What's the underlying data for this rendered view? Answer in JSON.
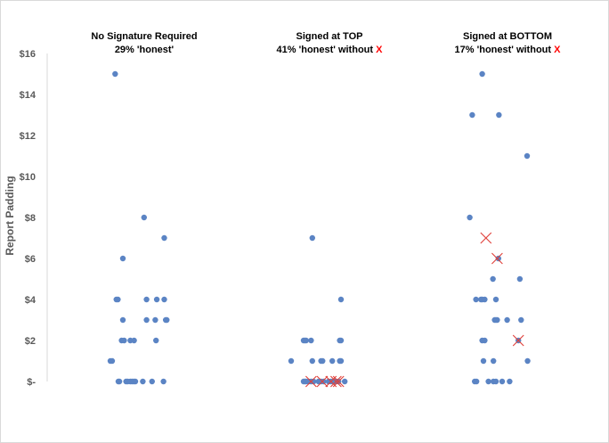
{
  "chart_data": {
    "type": "scatter",
    "ylabel": "Report Padding",
    "yticks": [
      "$16",
      "$14",
      "$12",
      "$10",
      "$8",
      "$6",
      "$4",
      "$2",
      "$-"
    ],
    "ylim": [
      0,
      16
    ],
    "grid": false,
    "point_color": "#5b84c4",
    "cross_color": "#e0403a",
    "panels": [
      {
        "title": "No Signature Required",
        "subtitle": "29% 'honest'",
        "subtitle_mark": "",
        "points": [
          {
            "x": 0.69,
            "y": 15
          },
          {
            "x": 1.85,
            "y": 8
          },
          {
            "x": 2.66,
            "y": 7
          },
          {
            "x": 1.0,
            "y": 6
          },
          {
            "x": 0.74,
            "y": 4
          },
          {
            "x": 0.8,
            "y": 4
          },
          {
            "x": 1.95,
            "y": 4
          },
          {
            "x": 2.36,
            "y": 4
          },
          {
            "x": 2.66,
            "y": 4
          },
          {
            "x": 1.0,
            "y": 3
          },
          {
            "x": 1.95,
            "y": 3
          },
          {
            "x": 2.3,
            "y": 3
          },
          {
            "x": 2.72,
            "y": 3
          },
          {
            "x": 2.76,
            "y": 3
          },
          {
            "x": 0.95,
            "y": 2
          },
          {
            "x": 1.05,
            "y": 2
          },
          {
            "x": 1.3,
            "y": 2
          },
          {
            "x": 1.45,
            "y": 2
          },
          {
            "x": 2.33,
            "y": 2
          },
          {
            "x": 0.5,
            "y": 1
          },
          {
            "x": 0.57,
            "y": 1
          },
          {
            "x": 0.82,
            "y": 0
          },
          {
            "x": 0.86,
            "y": 0
          },
          {
            "x": 1.13,
            "y": 0
          },
          {
            "x": 1.19,
            "y": 0
          },
          {
            "x": 1.3,
            "y": 0
          },
          {
            "x": 1.37,
            "y": 0
          },
          {
            "x": 1.44,
            "y": 0
          },
          {
            "x": 1.5,
            "y": 0
          },
          {
            "x": 1.8,
            "y": 0
          },
          {
            "x": 2.17,
            "y": 0
          },
          {
            "x": 2.63,
            "y": 0
          }
        ],
        "crosses": []
      },
      {
        "title": "Signed at TOP",
        "subtitle": "41% 'honest' without",
        "subtitle_mark": "X",
        "points": [
          {
            "x": 1.35,
            "y": 7
          },
          {
            "x": 2.5,
            "y": 4
          },
          {
            "x": 1.0,
            "y": 2
          },
          {
            "x": 1.05,
            "y": 2
          },
          {
            "x": 1.1,
            "y": 2
          },
          {
            "x": 1.3,
            "y": 2
          },
          {
            "x": 2.45,
            "y": 2
          },
          {
            "x": 2.5,
            "y": 2
          },
          {
            "x": 0.5,
            "y": 1
          },
          {
            "x": 1.35,
            "y": 1
          },
          {
            "x": 1.7,
            "y": 1
          },
          {
            "x": 1.76,
            "y": 1
          },
          {
            "x": 2.15,
            "y": 1
          },
          {
            "x": 2.45,
            "y": 1
          },
          {
            "x": 2.5,
            "y": 1
          },
          {
            "x": 1.0,
            "y": 0
          },
          {
            "x": 1.05,
            "y": 0
          },
          {
            "x": 1.1,
            "y": 0
          },
          {
            "x": 1.2,
            "y": 0
          },
          {
            "x": 1.3,
            "y": 0
          },
          {
            "x": 1.4,
            "y": 0
          },
          {
            "x": 1.6,
            "y": 0
          },
          {
            "x": 1.7,
            "y": 0
          },
          {
            "x": 1.8,
            "y": 0
          },
          {
            "x": 2.0,
            "y": 0
          },
          {
            "x": 2.1,
            "y": 0
          },
          {
            "x": 2.2,
            "y": 0
          },
          {
            "x": 2.3,
            "y": 0
          },
          {
            "x": 2.4,
            "y": 0
          },
          {
            "x": 2.65,
            "y": 0
          }
        ],
        "crosses": [
          {
            "x": 1.3,
            "y": 0
          },
          {
            "x": 1.75,
            "y": 0
          },
          {
            "x": 2.1,
            "y": 0
          },
          {
            "x": 2.3,
            "y": 0
          },
          {
            "x": 2.4,
            "y": 0
          }
        ]
      },
      {
        "title": "Signed at BOTTOM",
        "subtitle": "17% 'honest' without",
        "subtitle_mark": "X",
        "points": [
          {
            "x": 1.2,
            "y": 15
          },
          {
            "x": 0.8,
            "y": 13
          },
          {
            "x": 1.87,
            "y": 13
          },
          {
            "x": 3.0,
            "y": 11
          },
          {
            "x": 0.7,
            "y": 8
          },
          {
            "x": 1.85,
            "y": 6
          },
          {
            "x": 1.63,
            "y": 5
          },
          {
            "x": 2.71,
            "y": 5
          },
          {
            "x": 0.95,
            "y": 4
          },
          {
            "x": 1.15,
            "y": 4
          },
          {
            "x": 1.2,
            "y": 4
          },
          {
            "x": 1.3,
            "y": 4
          },
          {
            "x": 1.75,
            "y": 4
          },
          {
            "x": 1.7,
            "y": 3
          },
          {
            "x": 1.75,
            "y": 3
          },
          {
            "x": 1.8,
            "y": 3
          },
          {
            "x": 2.2,
            "y": 3
          },
          {
            "x": 2.76,
            "y": 3
          },
          {
            "x": 1.2,
            "y": 2
          },
          {
            "x": 1.3,
            "y": 2
          },
          {
            "x": 2.65,
            "y": 2
          },
          {
            "x": 1.25,
            "y": 1
          },
          {
            "x": 1.65,
            "y": 1
          },
          {
            "x": 3.02,
            "y": 1
          },
          {
            "x": 0.9,
            "y": 0
          },
          {
            "x": 0.97,
            "y": 0
          },
          {
            "x": 1.45,
            "y": 0
          },
          {
            "x": 1.65,
            "y": 0
          },
          {
            "x": 1.75,
            "y": 0
          },
          {
            "x": 2.0,
            "y": 0
          },
          {
            "x": 2.3,
            "y": 0
          }
        ],
        "crosses": [
          {
            "x": 1.35,
            "y": 7
          },
          {
            "x": 1.8,
            "y": 6
          },
          {
            "x": 2.65,
            "y": 2
          }
        ]
      }
    ]
  }
}
